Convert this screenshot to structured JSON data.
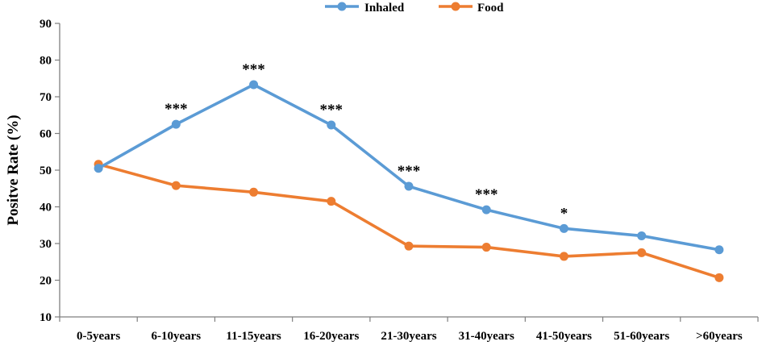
{
  "chart_data": {
    "type": "line",
    "title": "",
    "xlabel": "",
    "ylabel": "Positve Rate (%)",
    "ylim": [
      10,
      90
    ],
    "yticks": [
      10,
      20,
      30,
      40,
      50,
      60,
      70,
      80,
      90
    ],
    "categories": [
      "0-5years",
      "6-10years",
      "11-15years",
      "16-20years",
      "21-30years",
      "31-40years",
      "41-50years",
      "51-60years",
      ">60years"
    ],
    "series": [
      {
        "name": "Inhaled",
        "color": "#5b9bd5",
        "values": [
          50.5,
          62.5,
          73.3,
          62.3,
          45.6,
          39.2,
          34.1,
          32.1,
          28.3
        ]
      },
      {
        "name": "Food",
        "color": "#ed7d31",
        "values": [
          51.6,
          45.8,
          44.0,
          41.5,
          29.3,
          29.0,
          26.5,
          27.5,
          20.7
        ]
      }
    ],
    "annotations": [
      {
        "category": "6-10years",
        "text": "***"
      },
      {
        "category": "11-15years",
        "text": "***"
      },
      {
        "category": "16-20years",
        "text": "***"
      },
      {
        "category": "21-30years",
        "text": "***"
      },
      {
        "category": "31-40years",
        "text": "***"
      },
      {
        "category": "41-50years",
        "text": "*"
      }
    ],
    "legend": "top-center",
    "grid": false
  }
}
